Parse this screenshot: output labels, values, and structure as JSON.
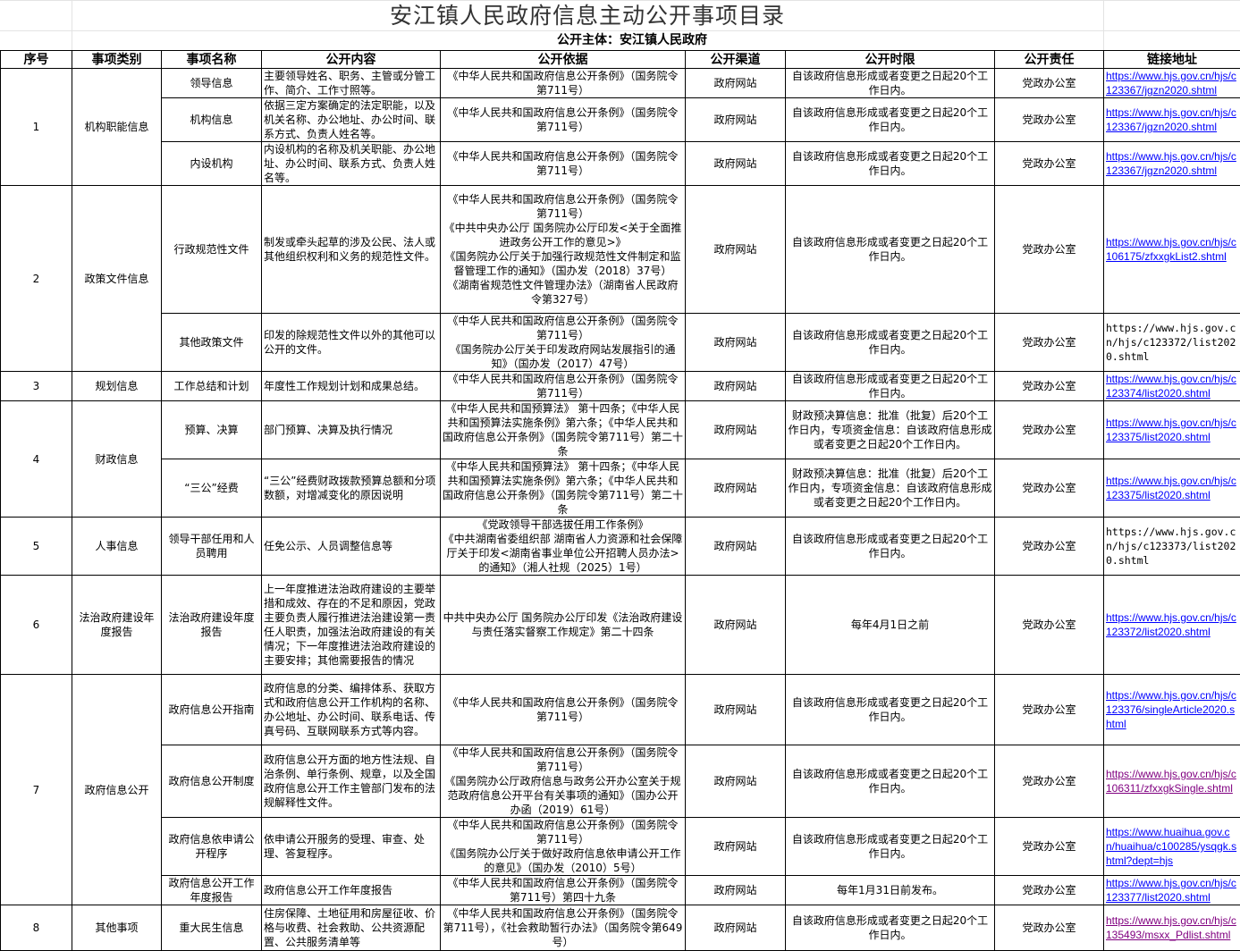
{
  "title": "安江镇人民政府信息主动公开事项目录",
  "subtitle": "公开主体：安江镇人民政府",
  "colors": {
    "link": "#0000ff",
    "visited_link": "#800080",
    "border": "#000000",
    "gridline": "#e3e3e3"
  },
  "headers": [
    "序号",
    "事项类别",
    "事项名称",
    "公开内容",
    "公开依据",
    "公开渠道",
    "公开时限",
    "公开责任",
    "链接地址"
  ],
  "groups": [
    {
      "no": "1",
      "category": "机构职能信息",
      "items": [
        {
          "name": "领导信息",
          "content": "主要领导姓名、职务、主管或分管工作、简介、工作寸照等。",
          "basis": "《中华人民共和国政府信息公开条例》（国务院令第711号）",
          "channel": "政府网站",
          "time_limit": "自该政府信息形成或者变更之日起20个工作日内。",
          "responsibility": "党政办公室",
          "link": "https://www.hjs.gov.cn/hjs/c123367/jgzn2020.shtml",
          "link_style": "hyperlink"
        },
        {
          "name": "机构信息",
          "content": "依据三定方案确定的法定职能，以及机关名称、办公地址、办公时间、联系方式、负责人姓名等。",
          "basis": "《中华人民共和国政府信息公开条例》（国务院令第711号）",
          "channel": "政府网站",
          "time_limit": "自该政府信息形成或者变更之日起20个工作日内。",
          "responsibility": "党政办公室",
          "link": "https://www.hjs.gov.cn/hjs/c123367/jgzn2020.shtml",
          "link_style": "hyperlink"
        },
        {
          "name": "内设机构",
          "content": "内设机构的名称及机关职能、办公地址、办公时间、联系方式、负责人姓名等。",
          "basis": "《中华人民共和国政府信息公开条例》（国务院令第711号）",
          "channel": "政府网站",
          "time_limit": "自该政府信息形成或者变更之日起20个工作日内。",
          "responsibility": "党政办公室",
          "link": "https://www.hjs.gov.cn/hjs/c123367/jgzn2020.shtml",
          "link_style": "hyperlink"
        }
      ]
    },
    {
      "no": "2",
      "category": "政策文件信息",
      "items": [
        {
          "name": "行政规范性文件",
          "content": "制发或牵头起草的涉及公民、法人或其他组织权利和义务的规范性文件。",
          "basis": "《中华人民共和国政府信息公开条例》（国务院令第711号）\n《中共中央办公厅 国务院办公厅印发<关于全面推进政务公开工作的意见>》\n《国务院办公厅关于加强行政规范性文件制定和监督管理工作的通知》（国办发（2018）37号）\n《湖南省规范性文件管理办法》（湖南省人民政府令第327号）",
          "channel": "政府网站",
          "time_limit": "自该政府信息形成或者变更之日起20个工作日内。",
          "responsibility": "党政办公室",
          "link": "https://www.hjs.gov.cn/hjs/c106175/zfxxgkList2.shtml",
          "link_style": "hyperlink"
        },
        {
          "name": "其他政策文件",
          "content": "印发的除规范性文件以外的其他可以公开的文件。",
          "basis": "《中华人民共和国政府信息公开条例》（国务院令第711号）\n《国务院办公厅关于印发政府网站发展指引的通知》（国办发（2017）47号）",
          "channel": "政府网站",
          "time_limit": "自该政府信息形成或者变更之日起20个工作日内。",
          "responsibility": "党政办公室",
          "link": "https://www.hjs.gov.cn/hjs/c123372/list2020.shtml",
          "link_style": "plain"
        }
      ]
    },
    {
      "no": "3",
      "category": "规划信息",
      "items": [
        {
          "name": "工作总结和计划",
          "content": "年度性工作规划计划和成果总结。",
          "basis": "《中华人民共和国政府信息公开条例》（国务院令第711号）",
          "channel": "政府网站",
          "time_limit": "自该政府信息形成或者变更之日起20个工作日内。",
          "responsibility": "党政办公室",
          "link": "https://www.hjs.gov.cn/hjs/c123374/list2020.shtml",
          "link_style": "hyperlink"
        }
      ]
    },
    {
      "no": "4",
      "category": "财政信息",
      "items": [
        {
          "name": "预算、决算",
          "content": "部门预算、决算及执行情况",
          "basis": "《中华人民共和国预算法》 第十四条；《中华人民共和国预算法实施条例》第六条；《中华人民共和国政府信息公开条例》（国务院令第711号）第二十条",
          "channel": "政府网站",
          "time_limit": "财政预决算信息：批准（批复）后20个工作日内，专项资金信息：自该政府信息形成或者变更之日起20个工作日内。",
          "responsibility": "党政办公室",
          "link": "https://www.hjs.gov.cn/hjs/c123375/list2020.shtml",
          "link_style": "hyperlink"
        },
        {
          "name": "“三公”经费",
          "content": "“三公”经费财政拨款预算总额和分项数额，对增减变化的原因说明",
          "basis": "《中华人民共和国预算法》 第十四条；《中华人民共和国预算法实施条例》第六条；《中华人民共和国政府信息公开条例》（国务院令第711号）第二十条",
          "channel": "政府网站",
          "time_limit": "财政预决算信息：批准（批复）后20个工作日内，专项资金信息：自该政府信息形成或者变更之日起20个工作日内。",
          "responsibility": "党政办公室",
          "link": "https://www.hjs.gov.cn/hjs/c123375/list2020.shtml",
          "link_style": "hyperlink"
        }
      ]
    },
    {
      "no": "5",
      "category": "人事信息",
      "items": [
        {
          "name": "领导干部任用和人员聘用",
          "content": "任免公示、人员调整信息等",
          "basis": "《党政领导干部选拔任用工作条例》\n《中共湖南省委组织部 湖南省人力资源和社会保障厅关于印发<湖南省事业单位公开招聘人员办法>的通知》（湘人社规（2025）1号）",
          "channel": "政府网站",
          "time_limit": "自该政府信息形成或者变更之日起20个工作日内。",
          "responsibility": "党政办公室",
          "link": "https://www.hjs.gov.cn/hjs/c123373/list2020.shtml",
          "link_style": "plain"
        }
      ]
    },
    {
      "no": "6",
      "category": "法治政府建设年度报告",
      "items": [
        {
          "name": "法治政府建设年度报告",
          "content": "上一年度推进法治政府建设的主要举措和成效、存在的不足和原因，党政主要负责人履行推进法治建设第一责任人职责，加强法治政府建设的有关情况；下一年度推进法治政府建设的主要安排；其他需要报告的情况",
          "basis": "中共中央办公厅 国务院办公厅印发《法治政府建设与责任落实督察工作规定》第二十四条",
          "channel": "政府网站",
          "time_limit": "每年4月1日之前",
          "responsibility": "党政办公室",
          "link": "https://www.hjs.gov.cn/hjs/c123372/list2020.shtml",
          "link_style": "hyperlink"
        }
      ]
    },
    {
      "no": "7",
      "category": "政府信息公开",
      "items": [
        {
          "name": "政府信息公开指南",
          "content": "政府信息的分类、编排体系、获取方式和政府信息公开工作机构的名称、办公地址、办公时间、联系电话、传真号码、互联网联系方式等内容。",
          "basis": "《中华人民共和国政府信息公开条例》（国务院令第711号）",
          "channel": "政府网站",
          "time_limit": "自该政府信息形成或者变更之日起20个工作日内。",
          "responsibility": "党政办公室",
          "link": "https://www.hjs.gov.cn/hjs/c123376/singleArticle2020.shtml",
          "link_style": "hyperlink"
        },
        {
          "name": "政府信息公开制度",
          "content": "政府信息公开方面的地方性法规、自治条例、单行条例、规章，以及全国政府信息公开工作主管部门发布的法规解释性文件。",
          "basis": "《中华人民共和国政府信息公开条例》（国务院令第711号）\n《国务院办公厅政府信息与政务公开办公室关于规范政府信息公开平台有关事项的通知》（国办公开办函（2019）61号）",
          "channel": "政府网站",
          "time_limit": "自该政府信息形成或者变更之日起20个工作日内。",
          "responsibility": "党政办公室",
          "link": "https://www.hjs.gov.cn/hjs/c106311/zfxxgkSingle.shtml",
          "link_style": "visited"
        },
        {
          "name": "政府信息依申请公开程序",
          "content": "依申请公开服务的受理、审查、处理、答复程序。",
          "basis": "《中华人民共和国政府信息公开条例》（国务院令第711号）\n《国务院办公厅关于做好政府信息依申请公开工作的意见》（国办发（2010）5号）",
          "channel": "政府网站",
          "time_limit": "自该政府信息形成或者变更之日起20个工作日内。",
          "responsibility": "党政办公室",
          "link": "https://www.huaihua.gov.cn/huaihua/c100285/ysqgk.shtml?dept=hjs",
          "link_style": "hyperlink"
        },
        {
          "name": "政府信息公开工作年度报告",
          "content": "政府信息公开工作年度报告",
          "basis": "《中华人民共和国政府信息公开条例》（国务院令第711号）第四十九条",
          "channel": "政府网站",
          "time_limit": "每年1月31日前发布。",
          "responsibility": "党政办公室",
          "link": "https://www.hjs.gov.cn/hjs/c123377/list2020.shtml",
          "link_style": "hyperlink"
        }
      ]
    },
    {
      "no": "8",
      "category": "其他事项",
      "items": [
        {
          "name": "重大民生信息",
          "content": "住房保障、土地征用和房屋征收、价格与收费、社会救助、公共资源配置、公共服务清单等",
          "basis": "《中华人民共和国政府信息公开条例》（国务院令第711号），《社会救助暂行办法》（国务院令第649号）",
          "channel": "政府网站",
          "time_limit": "自该政府信息形成或者变更之日起20个工作日内。",
          "responsibility": "党政办公室",
          "link": "https://www.hjs.gov.cn/hjs/c135493/msxx_Pdlist.shtml",
          "link_style": "visited"
        }
      ]
    }
  ]
}
